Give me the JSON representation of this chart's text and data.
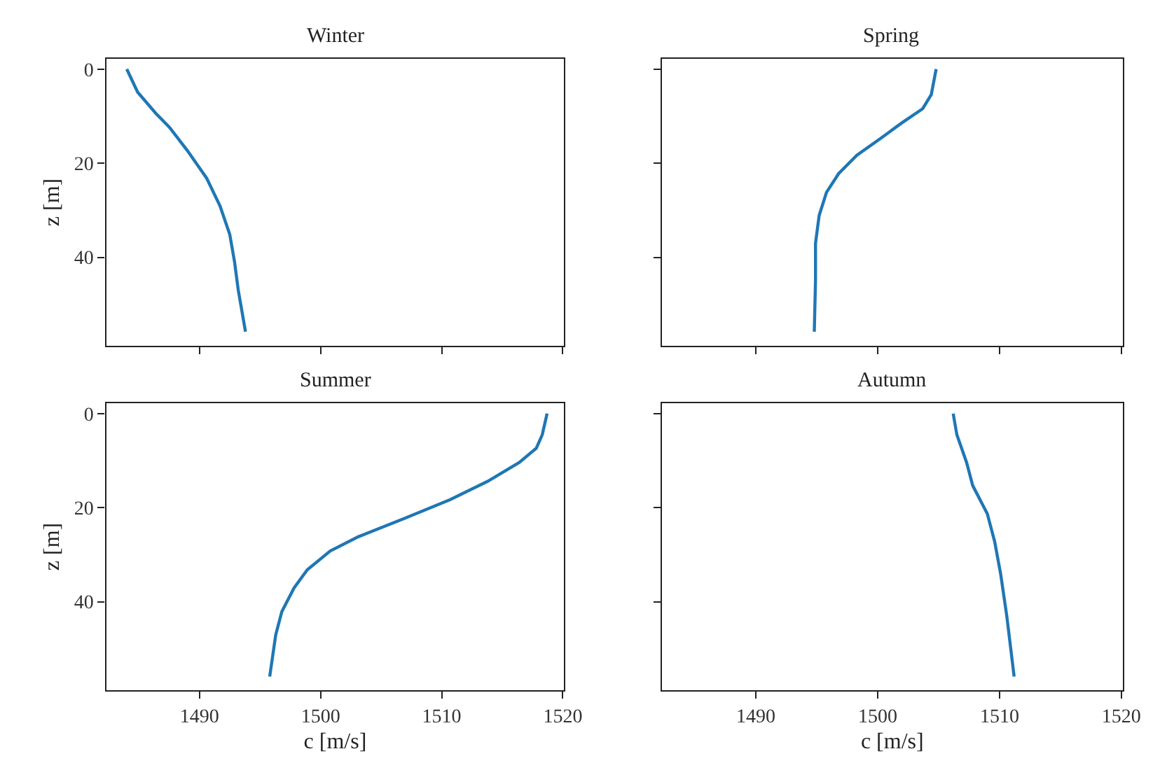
{
  "chart_data": [
    {
      "type": "line",
      "title": "Winter",
      "ylabel": "z [m]",
      "xlim": [
        1482.3,
        1520.1
      ],
      "xticks": [
        1490,
        1500,
        1510,
        1520
      ],
      "ylim": [
        58.8,
        -2.2
      ],
      "yticks": [
        0,
        20,
        40
      ],
      "tick_labels": "y",
      "series": [
        {
          "color": "#1f77b4",
          "x": [
            1484.0,
            1484.9,
            1486.4,
            1487.5,
            1489.0,
            1490.6,
            1491.7,
            1492.5,
            1492.9,
            1493.2,
            1493.8
          ],
          "values": [
            0,
            4.9,
            9.4,
            12.3,
            17.3,
            23.2,
            29.1,
            35.1,
            41.0,
            46.9,
            55.8
          ]
        }
      ]
    },
    {
      "type": "line",
      "title": "Spring",
      "xlim": [
        1482.3,
        1520.1
      ],
      "xticks": [
        1490,
        1500,
        1510,
        1520
      ],
      "ylim": [
        58.8,
        -2.2
      ],
      "yticks": [
        0,
        20,
        40
      ],
      "tick_labels": false,
      "series": [
        {
          "color": "#1f77b4",
          "x": [
            1504.8,
            1504.4,
            1503.7,
            1502.0,
            1500.2,
            1498.3,
            1496.8,
            1495.8,
            1495.2,
            1494.9,
            1494.9,
            1494.8
          ],
          "values": [
            0,
            5.4,
            8.4,
            11.4,
            14.8,
            18.3,
            22.2,
            26.2,
            31.1,
            37.0,
            44.9,
            55.8
          ]
        }
      ]
    },
    {
      "type": "line",
      "title": "Summer",
      "xlabel": "c [m/s]",
      "ylabel": "z [m]",
      "xlim": [
        1482.3,
        1520.1
      ],
      "xticks": [
        1490,
        1500,
        1510,
        1520
      ],
      "ylim": [
        58.8,
        -2.2
      ],
      "yticks": [
        0,
        20,
        40
      ],
      "series": [
        {
          "color": "#1f77b4",
          "x": [
            1518.7,
            1518.3,
            1517.8,
            1516.4,
            1513.8,
            1510.7,
            1506.9,
            1503.1,
            1500.8,
            1498.9,
            1497.8,
            1496.8,
            1496.3,
            1495.8
          ],
          "values": [
            0,
            4.5,
            7.4,
            10.4,
            14.4,
            18.3,
            22.3,
            26.2,
            29.2,
            33.2,
            37.1,
            42.1,
            47.0,
            55.9
          ]
        }
      ]
    },
    {
      "type": "line",
      "title": "Autumn",
      "xlabel": "c [m/s]",
      "xlim": [
        1482.3,
        1520.1
      ],
      "xticks": [
        1490,
        1500,
        1510,
        1520
      ],
      "ylim": [
        58.8,
        -2.2
      ],
      "yticks": [
        0,
        20,
        40
      ],
      "tick_labels": "x",
      "series": [
        {
          "color": "#1f77b4",
          "x": [
            1506.2,
            1506.5,
            1507.3,
            1507.8,
            1509.0,
            1509.6,
            1510.1,
            1510.6,
            1511.2
          ],
          "values": [
            0,
            4.5,
            10.4,
            15.3,
            21.3,
            27.2,
            34.2,
            43.1,
            55.9
          ]
        }
      ]
    }
  ]
}
